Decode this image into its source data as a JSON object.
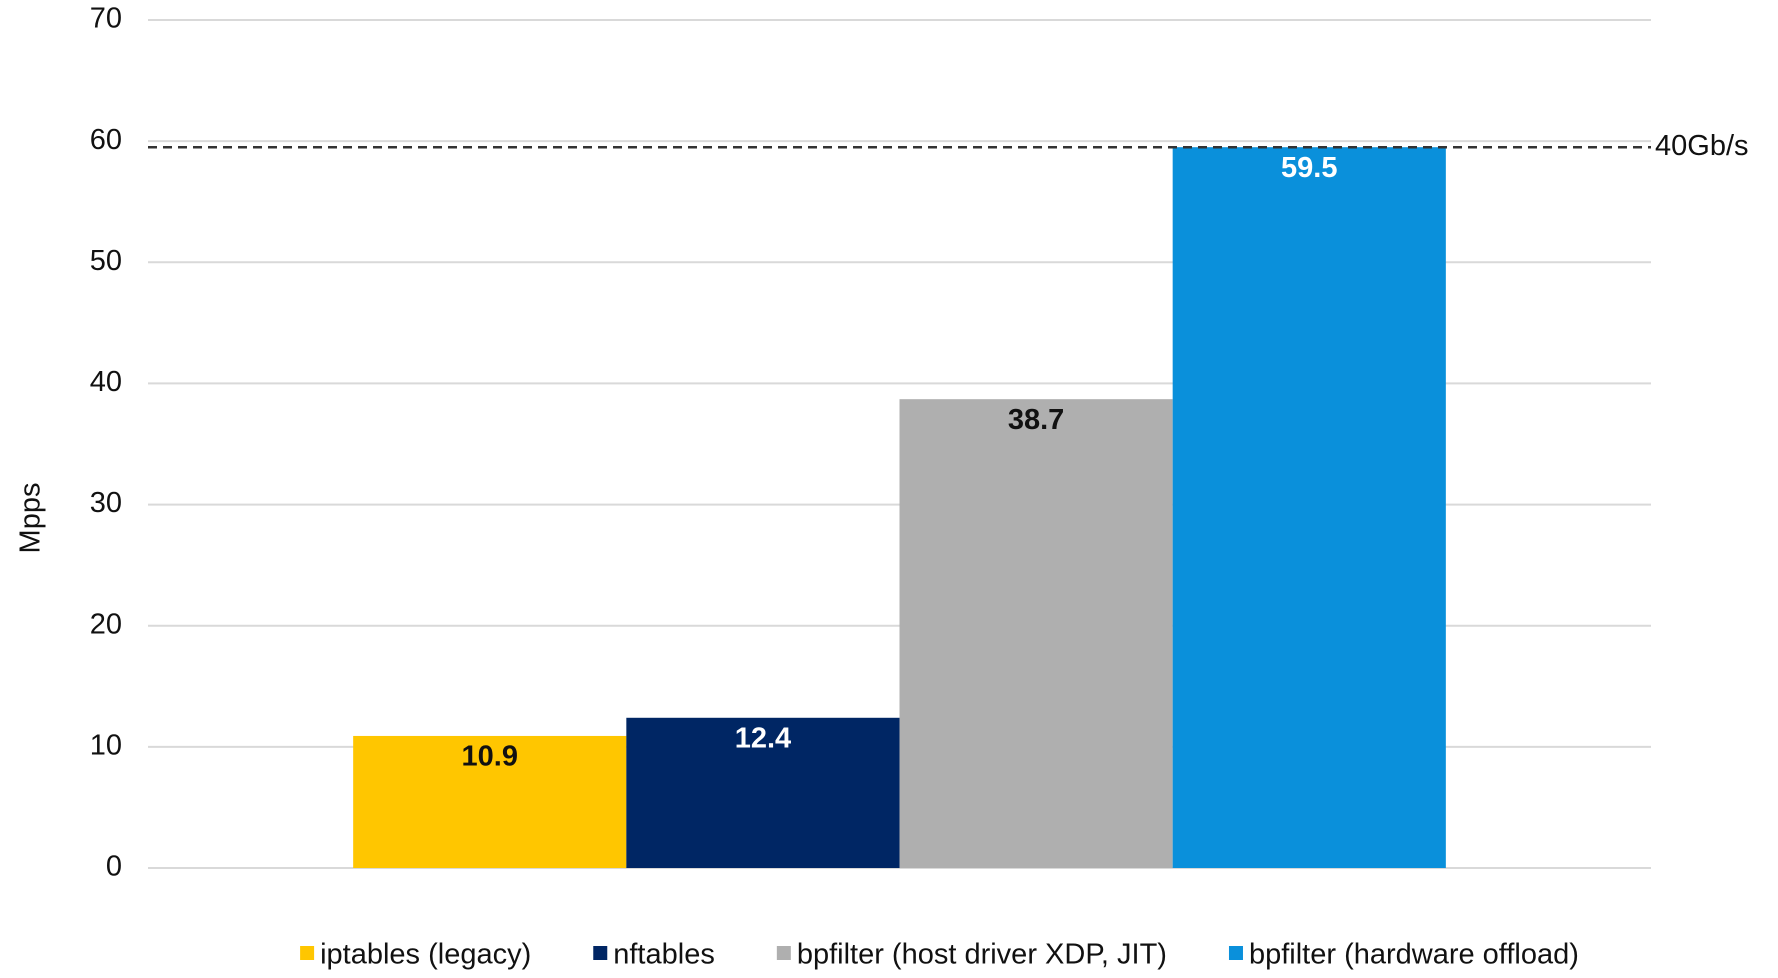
{
  "chart_data": {
    "type": "bar",
    "y_label": "Mpps",
    "categories": [
      null
    ],
    "series": [
      {
        "name": "iptables (legacy)",
        "color": "#ffc600",
        "values": [
          10.9
        ]
      },
      {
        "name": "nftables",
        "color": "#002664",
        "values": [
          12.4
        ]
      },
      {
        "name": "bpfilter (host driver XDP, JIT)",
        "color": "#afafaf",
        "values": [
          38.7
        ]
      },
      {
        "name": "bpfilter (hardware offload)",
        "color": "#0a90db",
        "values": [
          59.5
        ]
      }
    ],
    "annotations": [
      {
        "label": "40Gb/s",
        "value": 59.5
      }
    ],
    "ylim": [
      0,
      70
    ],
    "yticks": [
      0,
      10,
      20,
      30,
      40,
      50,
      60,
      70
    ],
    "grid": true,
    "legend": "bottom"
  }
}
